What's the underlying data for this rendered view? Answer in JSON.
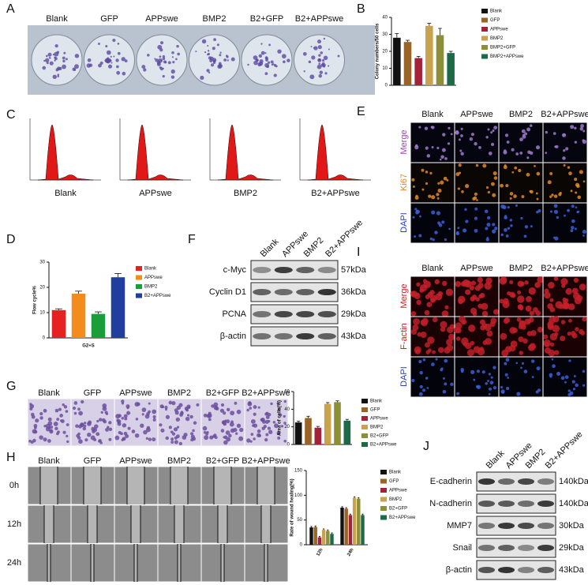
{
  "panel_labels": [
    "A",
    "B",
    "C",
    "D",
    "E",
    "F",
    "G",
    "H",
    "I",
    "J"
  ],
  "colony_plates": {
    "columns": [
      "Blank",
      "GFP",
      "APPswe",
      "BMP2",
      "B2+GFP",
      "B2+APPswe"
    ]
  },
  "cell_cycle_histograms": {
    "columns": [
      "Blank",
      "APPswe",
      "BMP2",
      "B2+APPswe"
    ]
  },
  "ki67_staining": {
    "columns": [
      "Blank",
      "APPswe",
      "BMP2",
      "B2+APPswe"
    ],
    "rows": [
      "Merge",
      "Ki67",
      "DAPI"
    ]
  },
  "western_blot_proliferation": {
    "columns": [
      "Blank",
      "APPswe",
      "BMP2",
      "B2+APPswe"
    ],
    "rows": [
      {
        "protein": "c-Myc",
        "size": "57kDa"
      },
      {
        "protein": "Cyclin D1",
        "size": "36kDa"
      },
      {
        "protein": "PCNA",
        "size": "29kDa"
      },
      {
        "protein": "β-actin",
        "size": "43kDa"
      }
    ]
  },
  "factin_staining": {
    "columns": [
      "Blank",
      "APPswe",
      "BMP2",
      "B2+APPswe"
    ],
    "rows": [
      "Merge",
      "F-actin",
      "DAPI"
    ]
  },
  "transwell": {
    "columns": [
      "Blank",
      "GFP",
      "APPswe",
      "BMP2",
      "B2+GFP",
      "B2+APPswe"
    ]
  },
  "wound_healing": {
    "columns": [
      "Blank",
      "GFP",
      "APPswe",
      "BMP2",
      "B2+GFP",
      "B2+APPswe"
    ],
    "rows": [
      "0h",
      "12h",
      "24h"
    ]
  },
  "western_blot_emt": {
    "columns": [
      "Blank",
      "APPswe",
      "BMP2",
      "B2+APPswe"
    ],
    "rows": [
      {
        "protein": "E-cadherin",
        "size": "140kDa"
      },
      {
        "protein": "N-cadherin",
        "size": "140kDa"
      },
      {
        "protein": "MMP7",
        "size": "30kDa"
      },
      {
        "protein": "Snail",
        "size": "29kDa"
      },
      {
        "protein": "β-actin",
        "size": "43kDa"
      }
    ]
  },
  "chart_data": [
    {
      "type": "bar",
      "ylabel": "Colony numbers/50 cells",
      "categories": [
        "Blank",
        "GFP",
        "APPswe",
        "BMP2",
        "BMP2+GFP",
        "BMP2+APPswe"
      ],
      "values": [
        28,
        25.5,
        16,
        35,
        29.5,
        19
      ],
      "errors": [
        2.5,
        1,
        1,
        1.5,
        4,
        1
      ],
      "colors": [
        "#111111",
        "#9a6428",
        "#a3223a",
        "#c9a24e",
        "#8c8e38",
        "#1d6a48"
      ],
      "ylim": [
        0,
        40
      ],
      "yticks": [
        0,
        10,
        20,
        30,
        40
      ]
    },
    {
      "type": "bar",
      "ylabel": "Flow cycle%",
      "xlabel": "G2+S",
      "categories": [
        "Blank",
        "APPswe",
        "BMP2",
        "B2+APPswe"
      ],
      "values": [
        11,
        17.5,
        9.5,
        24
      ],
      "errors": [
        0.5,
        1,
        0.8,
        1.5
      ],
      "colors": [
        "#e52121",
        "#f28c1c",
        "#1a9e3a",
        "#1f3e9e"
      ],
      "ylim": [
        0,
        30
      ],
      "yticks": [
        0,
        10,
        20,
        30
      ]
    },
    {
      "type": "bar",
      "ylabel": "Area of cells(%)",
      "categories": [
        "Blank",
        "GFP",
        "APPswe",
        "BMP2",
        "B2+GFP",
        "B2+APPswe"
      ],
      "values": [
        25,
        30,
        19,
        46,
        48,
        27
      ],
      "errors": [
        1.5,
        2,
        1.5,
        1.5,
        1.5,
        1.5
      ],
      "colors": [
        "#111111",
        "#9a6428",
        "#a3223a",
        "#c9a24e",
        "#8c8e38",
        "#1d6a48"
      ],
      "ylim": [
        0,
        60
      ],
      "yticks": [
        0,
        20,
        40,
        60
      ]
    },
    {
      "type": "grouped_bar",
      "ylabel": "Rate of wound healing(%)",
      "categories": [
        "12h",
        "24h"
      ],
      "series": [
        {
          "name": "Blank",
          "color": "#111111",
          "values": [
            35,
            75
          ],
          "errors": [
            2,
            2
          ]
        },
        {
          "name": "GFP",
          "color": "#9a6428",
          "values": [
            36,
            73
          ],
          "errors": [
            2,
            2
          ]
        },
        {
          "name": "APPswe",
          "color": "#a3223a",
          "values": [
            15,
            60
          ],
          "errors": [
            2,
            2
          ]
        },
        {
          "name": "BMP2",
          "color": "#c9a24e",
          "values": [
            30,
            95
          ],
          "errors": [
            2,
            2
          ]
        },
        {
          "name": "B2+GFP",
          "color": "#8c8e38",
          "values": [
            28,
            93
          ],
          "errors": [
            2,
            2
          ]
        },
        {
          "name": "B2+APPswe",
          "color": "#1d6a48",
          "values": [
            22,
            60
          ],
          "errors": [
            2,
            2
          ]
        }
      ],
      "ylim": [
        0,
        150
      ],
      "yticks": [
        0,
        50,
        100,
        150
      ]
    }
  ]
}
